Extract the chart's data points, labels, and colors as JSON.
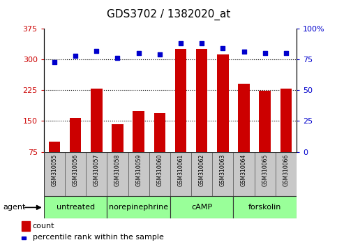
{
  "title": "GDS3702 / 1382020_at",
  "samples": [
    "GSM310055",
    "GSM310056",
    "GSM310057",
    "GSM310058",
    "GSM310059",
    "GSM310060",
    "GSM310061",
    "GSM310062",
    "GSM310063",
    "GSM310064",
    "GSM310065",
    "GSM310066"
  ],
  "counts": [
    100,
    158,
    228,
    143,
    175,
    170,
    325,
    325,
    312,
    240,
    223,
    228
  ],
  "percentiles": [
    73,
    78,
    82,
    76,
    80,
    79,
    88,
    88,
    84,
    81,
    80,
    80
  ],
  "agents": [
    {
      "label": "untreated",
      "start": 0,
      "end": 3
    },
    {
      "label": "norepinephrine",
      "start": 3,
      "end": 6
    },
    {
      "label": "cAMP",
      "start": 6,
      "end": 9
    },
    {
      "label": "forskolin",
      "start": 9,
      "end": 12
    }
  ],
  "ylim_left": [
    75,
    375
  ],
  "ylim_right": [
    0,
    100
  ],
  "yticks_left": [
    75,
    150,
    225,
    300,
    375
  ],
  "yticks_right": [
    0,
    25,
    50,
    75,
    100
  ],
  "bar_color": "#cc0000",
  "scatter_color": "#0000cc",
  "grid_color": "#000000",
  "agent_bg_color": "#99ff99",
  "sample_bg_color": "#c8c8c8",
  "ylabel_left_color": "#cc0000",
  "ylabel_right_color": "#0000cc",
  "bar_width": 0.55,
  "right_ytick_labels": [
    "0",
    "25",
    "50",
    "75",
    "100%"
  ],
  "left_ytick_labels": [
    "75",
    "150",
    "225",
    "300",
    "375"
  ],
  "hgrid_lines": [
    150,
    225,
    300
  ],
  "bg_color": "#ffffff"
}
